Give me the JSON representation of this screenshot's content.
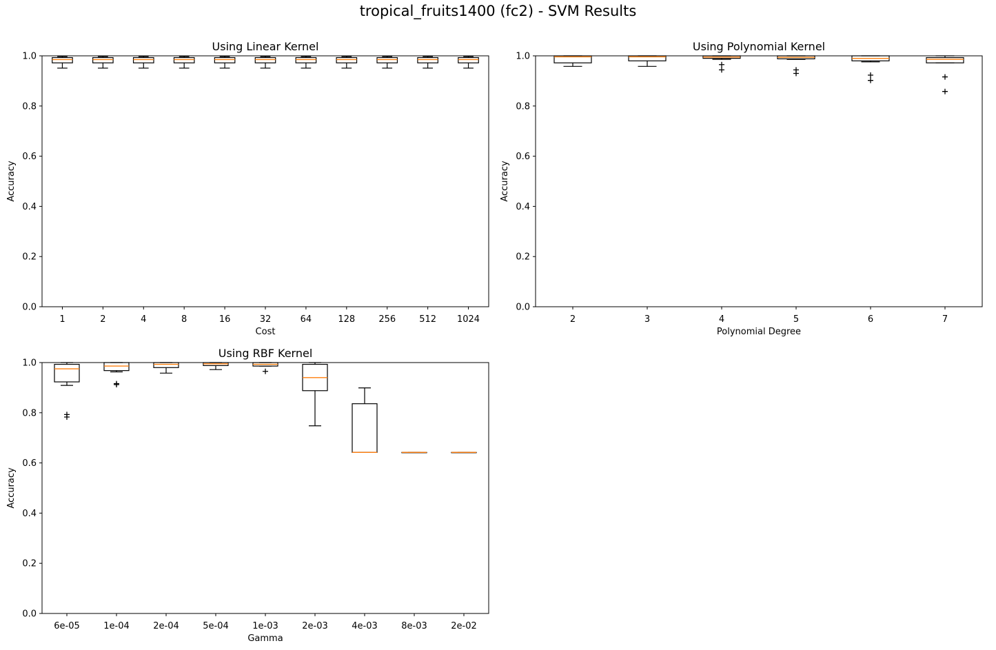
{
  "figure": {
    "title": "tropical_fruits1400 (fc2) - SVM Results"
  },
  "colors": {
    "box": "#000000",
    "median": "#ff7f0e",
    "background": "#ffffff"
  },
  "chart_data": [
    {
      "type": "box",
      "title": "Using Linear Kernel",
      "xlabel": "Cost",
      "ylabel": "Accuracy",
      "ylim": [
        0,
        1
      ],
      "yticks": [
        "0.0",
        "0.2",
        "0.4",
        "0.6",
        "0.8",
        "1.0"
      ],
      "categories": [
        "1",
        "2",
        "4",
        "8",
        "16",
        "32",
        "64",
        "128",
        "256",
        "512",
        "1024"
      ],
      "boxes": [
        {
          "q1": 0.972,
          "median": 0.985,
          "q3": 0.993,
          "whislo": 0.951,
          "whishi": 0.997,
          "fliers": []
        },
        {
          "q1": 0.972,
          "median": 0.985,
          "q3": 0.993,
          "whislo": 0.951,
          "whishi": 0.997,
          "fliers": []
        },
        {
          "q1": 0.972,
          "median": 0.985,
          "q3": 0.993,
          "whislo": 0.951,
          "whishi": 0.997,
          "fliers": []
        },
        {
          "q1": 0.972,
          "median": 0.985,
          "q3": 0.993,
          "whislo": 0.951,
          "whishi": 0.997,
          "fliers": []
        },
        {
          "q1": 0.972,
          "median": 0.985,
          "q3": 0.993,
          "whislo": 0.951,
          "whishi": 0.997,
          "fliers": []
        },
        {
          "q1": 0.972,
          "median": 0.985,
          "q3": 0.993,
          "whislo": 0.951,
          "whishi": 0.997,
          "fliers": []
        },
        {
          "q1": 0.972,
          "median": 0.985,
          "q3": 0.993,
          "whislo": 0.951,
          "whishi": 0.997,
          "fliers": []
        },
        {
          "q1": 0.972,
          "median": 0.985,
          "q3": 0.993,
          "whislo": 0.951,
          "whishi": 0.997,
          "fliers": []
        },
        {
          "q1": 0.972,
          "median": 0.985,
          "q3": 0.993,
          "whislo": 0.951,
          "whishi": 0.997,
          "fliers": []
        },
        {
          "q1": 0.972,
          "median": 0.985,
          "q3": 0.993,
          "whislo": 0.951,
          "whishi": 0.997,
          "fliers": []
        },
        {
          "q1": 0.972,
          "median": 0.985,
          "q3": 0.993,
          "whislo": 0.951,
          "whishi": 0.997,
          "fliers": []
        }
      ]
    },
    {
      "type": "box",
      "title": "Using Polynomial Kernel",
      "xlabel": "Polynomial Degree",
      "ylabel": "Accuracy",
      "ylim": [
        0,
        1
      ],
      "yticks": [
        "0.0",
        "0.2",
        "0.4",
        "0.6",
        "0.8",
        "1.0"
      ],
      "categories": [
        "2",
        "3",
        "4",
        "5",
        "6",
        "7"
      ],
      "boxes": [
        {
          "q1": 0.972,
          "median": 0.996,
          "q3": 1.0,
          "whislo": 0.958,
          "whishi": 1.0,
          "fliers": []
        },
        {
          "q1": 0.98,
          "median": 0.996,
          "q3": 1.0,
          "whislo": 0.958,
          "whishi": 1.0,
          "fliers": []
        },
        {
          "q1": 0.99,
          "median": 0.995,
          "q3": 1.0,
          "whislo": 0.986,
          "whishi": 1.0,
          "fliers": [
            0.965,
            0.944
          ]
        },
        {
          "q1": 0.988,
          "median": 0.994,
          "q3": 1.0,
          "whislo": 0.986,
          "whishi": 1.0,
          "fliers": [
            0.944,
            0.93
          ]
        },
        {
          "q1": 0.98,
          "median": 0.99,
          "q3": 1.0,
          "whislo": 0.976,
          "whishi": 1.0,
          "fliers": [
            0.923,
            0.902
          ]
        },
        {
          "q1": 0.972,
          "median": 0.986,
          "q3": 0.993,
          "whislo": 0.972,
          "whishi": 1.0,
          "fliers": [
            0.916,
            0.858
          ]
        }
      ]
    },
    {
      "type": "box",
      "title": "Using RBF Kernel",
      "xlabel": "Gamma",
      "ylabel": "Accuracy",
      "ylim": [
        0,
        1
      ],
      "yticks": [
        "0.0",
        "0.2",
        "0.4",
        "0.6",
        "0.8",
        "1.0"
      ],
      "categories": [
        "6e-05",
        "1e-04",
        "2e-04",
        "5e-04",
        "1e-03",
        "2e-03",
        "4e-03",
        "8e-03",
        "2e-02"
      ],
      "boxes": [
        {
          "q1": 0.923,
          "median": 0.975,
          "q3": 0.993,
          "whislo": 0.909,
          "whishi": 1.0,
          "fliers": [
            0.793,
            0.783
          ]
        },
        {
          "q1": 0.968,
          "median": 0.986,
          "q3": 1.0,
          "whislo": 0.963,
          "whishi": 1.0,
          "fliers": [
            0.916,
            0.912
          ]
        },
        {
          "q1": 0.98,
          "median": 0.993,
          "q3": 1.0,
          "whislo": 0.958,
          "whishi": 1.0,
          "fliers": []
        },
        {
          "q1": 0.988,
          "median": 0.995,
          "q3": 1.0,
          "whislo": 0.972,
          "whishi": 1.0,
          "fliers": []
        },
        {
          "q1": 0.986,
          "median": 0.993,
          "q3": 1.0,
          "whislo": 0.986,
          "whishi": 1.0,
          "fliers": [
            0.965
          ]
        },
        {
          "q1": 0.888,
          "median": 0.94,
          "q3": 0.993,
          "whislo": 0.748,
          "whishi": 1.0,
          "fliers": []
        },
        {
          "q1": 0.642,
          "median": 0.642,
          "q3": 0.836,
          "whislo": 0.642,
          "whishi": 0.899,
          "fliers": []
        },
        {
          "q1": 0.642,
          "median": 0.642,
          "q3": 0.642,
          "whislo": 0.642,
          "whishi": 0.642,
          "fliers": []
        },
        {
          "q1": 0.642,
          "median": 0.642,
          "q3": 0.642,
          "whislo": 0.642,
          "whishi": 0.642,
          "fliers": []
        }
      ]
    }
  ]
}
